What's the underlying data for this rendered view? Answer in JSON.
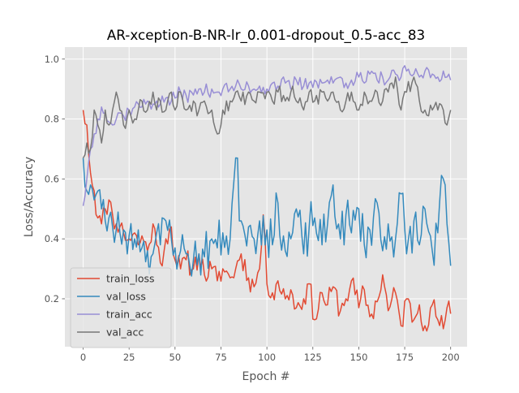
{
  "chart_data": {
    "type": "line",
    "title": "AR-xception-B-NR-lr_0.001-dropout_0.5-acc_83",
    "xlabel": "Epoch #",
    "ylabel": "Loss/Accuracy",
    "xlim": [
      -9.95,
      208.95
    ],
    "ylim": [
      0.04,
      1.04
    ],
    "x_ticks": [
      0,
      25,
      50,
      75,
      100,
      125,
      150,
      175,
      200
    ],
    "y_ticks": [
      0.2,
      0.4,
      0.6,
      0.8,
      1.0
    ],
    "x_tick_labels": [
      "0",
      "25",
      "50",
      "75",
      "100",
      "125",
      "150",
      "175",
      "200"
    ],
    "y_tick_labels": [
      "0.2",
      "0.4",
      "0.6",
      "0.8",
      "1.0"
    ],
    "grid": true,
    "legend_position": "lower-left",
    "background": "#e5e5e5",
    "series": [
      {
        "name": "train_loss",
        "color": "#e24a33",
        "keypoints": [
          [
            0,
            0.83
          ],
          [
            2,
            0.78
          ],
          [
            4,
            0.62
          ],
          [
            6,
            0.56
          ],
          [
            8,
            0.47
          ],
          [
            10,
            0.45
          ],
          [
            12,
            0.5
          ],
          [
            14,
            0.53
          ],
          [
            16,
            0.48
          ],
          [
            18,
            0.45
          ],
          [
            20,
            0.44
          ],
          [
            22,
            0.42
          ],
          [
            25,
            0.4
          ],
          [
            28,
            0.42
          ],
          [
            30,
            0.38
          ],
          [
            32,
            0.41
          ],
          [
            35,
            0.36
          ],
          [
            38,
            0.45
          ],
          [
            40,
            0.38
          ],
          [
            42,
            0.32
          ],
          [
            45,
            0.4
          ],
          [
            48,
            0.44
          ],
          [
            50,
            0.33
          ],
          [
            53,
            0.3
          ],
          [
            56,
            0.33
          ],
          [
            60,
            0.3
          ],
          [
            63,
            0.35
          ],
          [
            66,
            0.28
          ],
          [
            70,
            0.3
          ],
          [
            73,
            0.26
          ],
          [
            76,
            0.3
          ],
          [
            80,
            0.27
          ],
          [
            83,
            0.3
          ],
          [
            86,
            0.35
          ],
          [
            90,
            0.27
          ],
          [
            93,
            0.24
          ],
          [
            96,
            0.3
          ],
          [
            98,
            0.48
          ],
          [
            100,
            0.25
          ],
          [
            103,
            0.22
          ],
          [
            106,
            0.26
          ],
          [
            110,
            0.2
          ],
          [
            113,
            0.23
          ],
          [
            116,
            0.17
          ],
          [
            120,
            0.2
          ],
          [
            123,
            0.25
          ],
          [
            126,
            0.13
          ],
          [
            130,
            0.22
          ],
          [
            133,
            0.18
          ],
          [
            136,
            0.24
          ],
          [
            140,
            0.16
          ],
          [
            143,
            0.2
          ],
          [
            146,
            0.26
          ],
          [
            150,
            0.17
          ],
          [
            153,
            0.23
          ],
          [
            156,
            0.14
          ],
          [
            160,
            0.19
          ],
          [
            163,
            0.28
          ],
          [
            166,
            0.16
          ],
          [
            170,
            0.22
          ],
          [
            173,
            0.11
          ],
          [
            176,
            0.2
          ],
          [
            180,
            0.13
          ],
          [
            183,
            0.18
          ],
          [
            186,
            0.11
          ],
          [
            190,
            0.18
          ],
          [
            193,
            0.13
          ],
          [
            196,
            0.1
          ],
          [
            198,
            0.17
          ],
          [
            200,
            0.15
          ]
        ],
        "noise": 0.04,
        "seed": 11
      },
      {
        "name": "val_loss",
        "color": "#348abd",
        "keypoints": [
          [
            0,
            0.67
          ],
          [
            2,
            0.56
          ],
          [
            4,
            0.58
          ],
          [
            6,
            0.53
          ],
          [
            8,
            0.56
          ],
          [
            10,
            0.5
          ],
          [
            12,
            0.46
          ],
          [
            14,
            0.47
          ],
          [
            16,
            0.44
          ],
          [
            18,
            0.43
          ],
          [
            20,
            0.42
          ],
          [
            22,
            0.43
          ],
          [
            25,
            0.41
          ],
          [
            28,
            0.4
          ],
          [
            30,
            0.43
          ],
          [
            32,
            0.37
          ],
          [
            35,
            0.36
          ],
          [
            38,
            0.35
          ],
          [
            40,
            0.42
          ],
          [
            42,
            0.38
          ],
          [
            45,
            0.46
          ],
          [
            48,
            0.4
          ],
          [
            50,
            0.37
          ],
          [
            53,
            0.36
          ],
          [
            56,
            0.35
          ],
          [
            60,
            0.33
          ],
          [
            63,
            0.35
          ],
          [
            66,
            0.34
          ],
          [
            70,
            0.4
          ],
          [
            73,
            0.37
          ],
          [
            76,
            0.42
          ],
          [
            80,
            0.4
          ],
          [
            83,
            0.67
          ],
          [
            86,
            0.46
          ],
          [
            90,
            0.44
          ],
          [
            93,
            0.4
          ],
          [
            96,
            0.46
          ],
          [
            100,
            0.43
          ],
          [
            103,
            0.38
          ],
          [
            106,
            0.52
          ],
          [
            110,
            0.36
          ],
          [
            113,
            0.4
          ],
          [
            116,
            0.5
          ],
          [
            120,
            0.35
          ],
          [
            123,
            0.44
          ],
          [
            126,
            0.47
          ],
          [
            130,
            0.38
          ],
          [
            133,
            0.45
          ],
          [
            136,
            0.58
          ],
          [
            140,
            0.4
          ],
          [
            143,
            0.48
          ],
          [
            146,
            0.42
          ],
          [
            150,
            0.5
          ],
          [
            153,
            0.38
          ],
          [
            156,
            0.43
          ],
          [
            160,
            0.52
          ],
          [
            163,
            0.36
          ],
          [
            166,
            0.45
          ],
          [
            170,
            0.4
          ],
          [
            173,
            0.55
          ],
          [
            176,
            0.35
          ],
          [
            180,
            0.46
          ],
          [
            183,
            0.38
          ],
          [
            186,
            0.5
          ],
          [
            190,
            0.36
          ],
          [
            193,
            0.42
          ],
          [
            196,
            0.6
          ],
          [
            198,
            0.45
          ],
          [
            200,
            0.31
          ]
        ],
        "noise": 0.08,
        "seed": 23
      },
      {
        "name": "train_acc",
        "color": "#988ed5",
        "keypoints": [
          [
            0,
            0.51
          ],
          [
            2,
            0.6
          ],
          [
            4,
            0.7
          ],
          [
            6,
            0.75
          ],
          [
            8,
            0.8
          ],
          [
            10,
            0.84
          ],
          [
            12,
            0.82
          ],
          [
            14,
            0.79
          ],
          [
            16,
            0.78
          ],
          [
            18,
            0.8
          ],
          [
            20,
            0.82
          ],
          [
            22,
            0.81
          ],
          [
            25,
            0.83
          ],
          [
            28,
            0.84
          ],
          [
            30,
            0.85
          ],
          [
            32,
            0.84
          ],
          [
            35,
            0.86
          ],
          [
            38,
            0.85
          ],
          [
            40,
            0.86
          ],
          [
            42,
            0.85
          ],
          [
            45,
            0.87
          ],
          [
            48,
            0.86
          ],
          [
            50,
            0.87
          ],
          [
            53,
            0.89
          ],
          [
            56,
            0.88
          ],
          [
            60,
            0.88
          ],
          [
            63,
            0.9
          ],
          [
            66,
            0.89
          ],
          [
            70,
            0.9
          ],
          [
            73,
            0.89
          ],
          [
            76,
            0.9
          ],
          [
            80,
            0.9
          ],
          [
            83,
            0.91
          ],
          [
            86,
            0.9
          ],
          [
            90,
            0.91
          ],
          [
            93,
            0.9
          ],
          [
            96,
            0.91
          ],
          [
            100,
            0.9
          ],
          [
            103,
            0.92
          ],
          [
            106,
            0.91
          ],
          [
            110,
            0.92
          ],
          [
            113,
            0.9
          ],
          [
            116,
            0.93
          ],
          [
            120,
            0.91
          ],
          [
            123,
            0.92
          ],
          [
            126,
            0.93
          ],
          [
            130,
            0.92
          ],
          [
            133,
            0.93
          ],
          [
            136,
            0.92
          ],
          [
            140,
            0.94
          ],
          [
            143,
            0.92
          ],
          [
            146,
            0.93
          ],
          [
            150,
            0.94
          ],
          [
            153,
            0.92
          ],
          [
            156,
            0.95
          ],
          [
            160,
            0.93
          ],
          [
            163,
            0.94
          ],
          [
            166,
            0.93
          ],
          [
            170,
            0.95
          ],
          [
            173,
            0.94
          ],
          [
            176,
            0.96
          ],
          [
            180,
            0.95
          ],
          [
            183,
            0.94
          ],
          [
            186,
            0.96
          ],
          [
            190,
            0.95
          ],
          [
            193,
            0.94
          ],
          [
            196,
            0.96
          ],
          [
            198,
            0.94
          ],
          [
            200,
            0.93
          ]
        ],
        "noise": 0.025,
        "seed": 37
      },
      {
        "name": "val_acc",
        "color": "#777777",
        "keypoints": [
          [
            0,
            0.67
          ],
          [
            2,
            0.72
          ],
          [
            4,
            0.7
          ],
          [
            6,
            0.83
          ],
          [
            8,
            0.78
          ],
          [
            10,
            0.72
          ],
          [
            12,
            0.83
          ],
          [
            14,
            0.78
          ],
          [
            16,
            0.83
          ],
          [
            18,
            0.89
          ],
          [
            20,
            0.83
          ],
          [
            22,
            0.78
          ],
          [
            25,
            0.83
          ],
          [
            28,
            0.8
          ],
          [
            30,
            0.83
          ],
          [
            32,
            0.86
          ],
          [
            35,
            0.83
          ],
          [
            38,
            0.89
          ],
          [
            40,
            0.83
          ],
          [
            42,
            0.86
          ],
          [
            45,
            0.83
          ],
          [
            48,
            0.89
          ],
          [
            50,
            0.83
          ],
          [
            53,
            0.89
          ],
          [
            56,
            0.83
          ],
          [
            60,
            0.86
          ],
          [
            63,
            0.83
          ],
          [
            66,
            0.86
          ],
          [
            70,
            0.83
          ],
          [
            73,
            0.75
          ],
          [
            76,
            0.83
          ],
          [
            80,
            0.86
          ],
          [
            83,
            0.89
          ],
          [
            86,
            0.86
          ],
          [
            90,
            0.89
          ],
          [
            93,
            0.86
          ],
          [
            96,
            0.89
          ],
          [
            100,
            0.89
          ],
          [
            103,
            0.86
          ],
          [
            106,
            0.89
          ],
          [
            110,
            0.86
          ],
          [
            113,
            0.89
          ],
          [
            116,
            0.86
          ],
          [
            120,
            0.83
          ],
          [
            123,
            0.89
          ],
          [
            126,
            0.86
          ],
          [
            130,
            0.89
          ],
          [
            133,
            0.86
          ],
          [
            136,
            0.89
          ],
          [
            140,
            0.83
          ],
          [
            143,
            0.86
          ],
          [
            146,
            0.89
          ],
          [
            150,
            0.83
          ],
          [
            153,
            0.89
          ],
          [
            156,
            0.86
          ],
          [
            160,
            0.89
          ],
          [
            163,
            0.86
          ],
          [
            166,
            0.89
          ],
          [
            170,
            0.94
          ],
          [
            173,
            0.83
          ],
          [
            176,
            0.89
          ],
          [
            180,
            0.94
          ],
          [
            183,
            0.86
          ],
          [
            186,
            0.83
          ],
          [
            190,
            0.83
          ],
          [
            193,
            0.83
          ],
          [
            196,
            0.83
          ],
          [
            198,
            0.78
          ],
          [
            200,
            0.83
          ]
        ],
        "noise": 0.03,
        "seed": 53
      }
    ]
  }
}
